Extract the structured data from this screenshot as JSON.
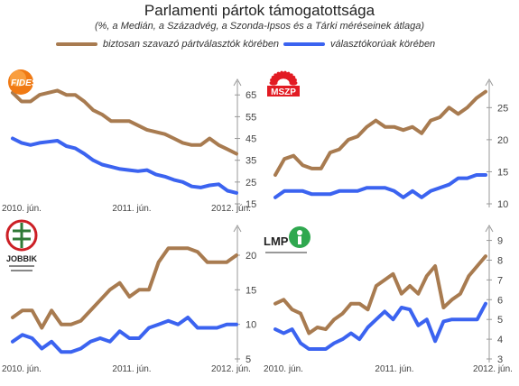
{
  "header": {
    "title": "Parlamenti pártok támogatottsága",
    "subtitle": "(%, a Medián, a Századvég, a Szonda-Ipsos és a Tárki méréseinek átlaga)"
  },
  "legend": {
    "items": [
      {
        "label": "biztosan szavazó pártválasztók körében",
        "color": "#a87b50"
      },
      {
        "label": "választókorúak körében",
        "color": "#3b63f0"
      }
    ]
  },
  "colors": {
    "decided": "#a87b50",
    "all": "#3b63f0",
    "axis": "#999999"
  },
  "chart_data": [
    {
      "type": "line",
      "logo": {
        "name": "fidesz-logo",
        "text": "FIDESZ",
        "color": "#f07a14"
      },
      "x_tick_labels": [
        "2010. jún.",
        "2011. jún.",
        "2012. jún."
      ],
      "y_ticks": [
        15,
        25,
        35,
        45,
        55,
        65
      ],
      "ylim": [
        15,
        68
      ],
      "series": [
        {
          "key": "decided",
          "values": [
            66,
            62,
            62,
            65,
            66,
            67,
            65,
            65,
            62,
            58,
            56,
            53,
            53,
            53,
            51,
            49,
            48,
            47,
            45,
            43,
            42,
            42,
            45,
            42,
            40,
            38
          ]
        },
        {
          "key": "all",
          "values": [
            45,
            43,
            42,
            43,
            43.5,
            44,
            41.5,
            40.5,
            38,
            35,
            33,
            32,
            31,
            30.5,
            30,
            30.5,
            28.5,
            27.5,
            26,
            25,
            23,
            22.5,
            23.5,
            24,
            21,
            20
          ]
        }
      ]
    },
    {
      "type": "line",
      "logo": {
        "name": "mszp-logo",
        "text": "MSZP",
        "color": "#e21b23"
      },
      "x_tick_labels": [
        "",
        "",
        ""
      ],
      "y_ticks": [
        10,
        15,
        20,
        25
      ],
      "ylim": [
        10,
        28
      ],
      "series": [
        {
          "key": "decided",
          "values": [
            14.5,
            17,
            17.5,
            16,
            15.5,
            15.5,
            18,
            18.5,
            20,
            20.5,
            22,
            23,
            22,
            22,
            21.5,
            22,
            21,
            23,
            23.5,
            25,
            24,
            25,
            26.5,
            27.5
          ]
        },
        {
          "key": "all",
          "values": [
            11,
            12,
            12,
            12,
            11.5,
            11.5,
            11.5,
            12,
            12,
            12,
            12.5,
            12.5,
            12.5,
            12,
            11,
            12,
            11,
            12,
            12.5,
            13,
            14,
            14,
            14.5,
            14.5
          ]
        }
      ]
    },
    {
      "type": "line",
      "logo": {
        "name": "jobbik-logo",
        "text": "JOBBIK",
        "color": "#cc1f25"
      },
      "x_tick_labels": [
        "2010. jún.",
        "2011. jún.",
        "2012. jún."
      ],
      "y_ticks": [
        5,
        10,
        15,
        20
      ],
      "ylim": [
        5,
        23
      ],
      "series": [
        {
          "key": "decided",
          "values": [
            11,
            12,
            12,
            9.5,
            12,
            10,
            10,
            10.5,
            12,
            13.5,
            15,
            16,
            14,
            15,
            15,
            19,
            21,
            21,
            21,
            20.5,
            19,
            19,
            19,
            20
          ]
        },
        {
          "key": "all",
          "values": [
            7.5,
            8.5,
            8,
            6.5,
            7.5,
            6,
            6,
            6.5,
            7.5,
            8,
            7.5,
            9,
            8,
            8,
            9.5,
            10,
            10.5,
            10,
            11,
            9.5,
            9.5,
            9.5,
            10,
            10
          ]
        }
      ]
    },
    {
      "type": "line",
      "logo": {
        "name": "lmp-logo",
        "text": "LMP",
        "color": "#2fa84f"
      },
      "x_tick_labels": [
        "2010. jún.",
        "2011. jún.",
        "2012. jún."
      ],
      "y_ticks": [
        3,
        4,
        5,
        6,
        7,
        8,
        9
      ],
      "ylim": [
        3,
        9.3
      ],
      "series": [
        {
          "key": "decided",
          "values": [
            5.8,
            6,
            5.5,
            5.3,
            4.3,
            4.6,
            4.5,
            5,
            5.3,
            5.8,
            5.8,
            5.5,
            6.7,
            7,
            7.3,
            6.3,
            6.7,
            6.3,
            7.2,
            7.7,
            5.6,
            6,
            6.3,
            7.2,
            7.7,
            8.2
          ]
        },
        {
          "key": "all",
          "values": [
            4.5,
            4.3,
            4.5,
            3.8,
            3.5,
            3.5,
            3.5,
            3.8,
            4,
            4.3,
            4,
            4.6,
            5,
            5.4,
            5,
            5.6,
            5.5,
            4.7,
            5,
            3.9,
            4.9,
            5,
            5,
            5,
            5,
            5.8
          ]
        }
      ]
    }
  ]
}
